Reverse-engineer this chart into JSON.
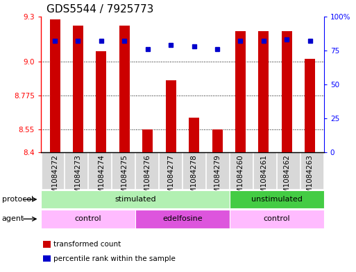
{
  "title": "GDS5544 / 7925773",
  "samples": [
    "GSM1084272",
    "GSM1084273",
    "GSM1084274",
    "GSM1084275",
    "GSM1084276",
    "GSM1084277",
    "GSM1084278",
    "GSM1084279",
    "GSM1084260",
    "GSM1084261",
    "GSM1084262",
    "GSM1084263"
  ],
  "bar_values": [
    9.28,
    9.24,
    9.07,
    9.24,
    8.55,
    8.875,
    8.63,
    8.55,
    9.2,
    9.2,
    9.2,
    9.02
  ],
  "dot_values": [
    82,
    82,
    82,
    82,
    76,
    79,
    78,
    76,
    82,
    82,
    83,
    82
  ],
  "ylim": [
    8.4,
    9.3
  ],
  "yticks_left": [
    8.4,
    8.55,
    8.775,
    9.0,
    9.3
  ],
  "yticks_right": [
    0,
    25,
    50,
    75,
    100
  ],
  "grid_lines": [
    8.55,
    8.775,
    9.0
  ],
  "bar_color": "#cc0000",
  "dot_color": "#0000cc",
  "bar_bottom": 8.4,
  "protocol_labels": [
    {
      "text": "stimulated",
      "start": 0,
      "end": 8,
      "color": "#b2f0b2"
    },
    {
      "text": "unstimulated",
      "start": 8,
      "end": 12,
      "color": "#44cc44"
    }
  ],
  "agent_labels": [
    {
      "text": "control",
      "start": 0,
      "end": 4,
      "color": "#ffbbff"
    },
    {
      "text": "edelfosine",
      "start": 4,
      "end": 8,
      "color": "#dd55dd"
    },
    {
      "text": "control",
      "start": 8,
      "end": 12,
      "color": "#ffbbff"
    }
  ],
  "legend_items": [
    {
      "label": "transformed count",
      "color": "#cc0000"
    },
    {
      "label": "percentile rank within the sample",
      "color": "#0000cc"
    }
  ],
  "title_fontsize": 11,
  "tick_fontsize": 7.5,
  "label_fontsize": 8,
  "bg_color": "#d8d8d8"
}
